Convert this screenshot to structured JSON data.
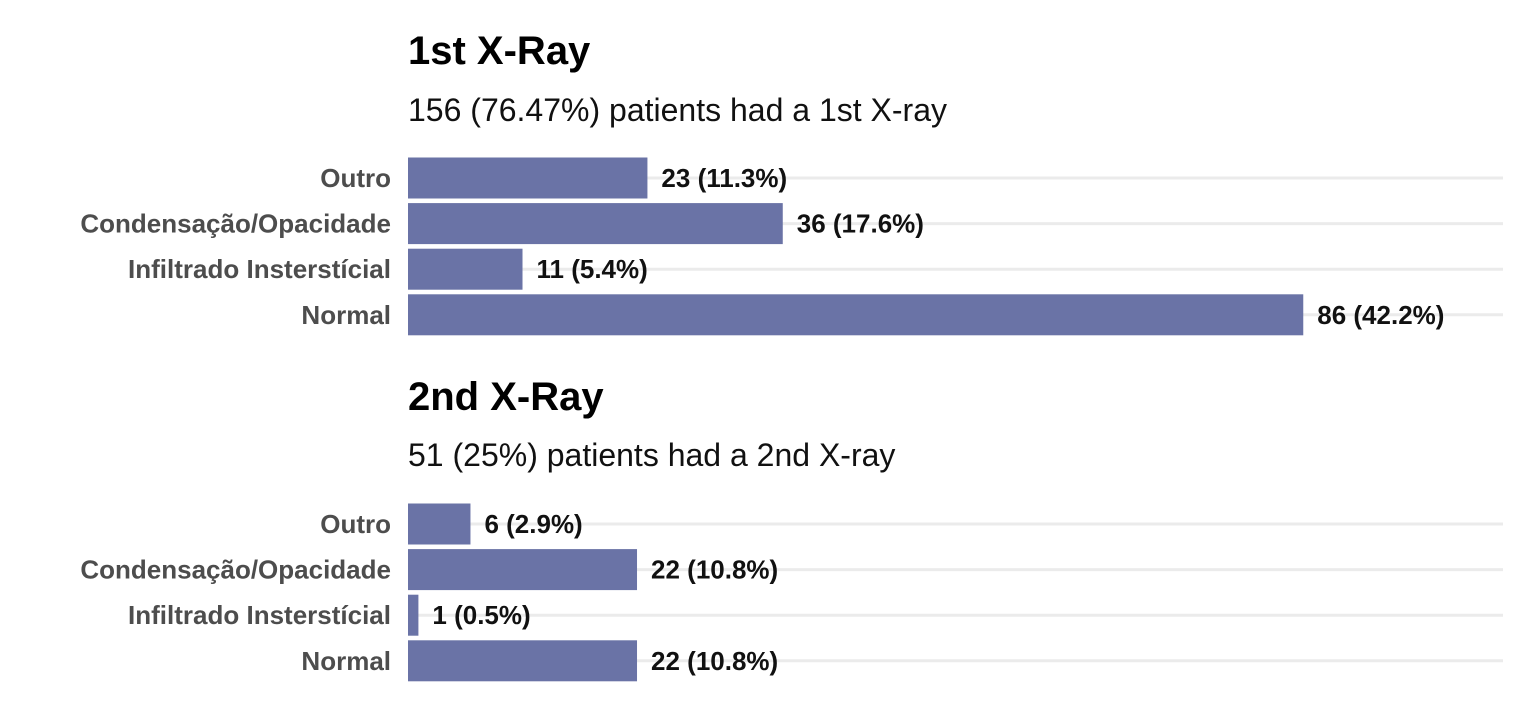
{
  "colors": {
    "bar": "#6a73a6",
    "grid": "#ebebeb"
  },
  "chart_data": [
    {
      "type": "bar",
      "orientation": "horizontal",
      "title": "1st X-Ray",
      "subtitle": "156 (76.47%) patients had a 1st X-ray",
      "categories": [
        "Outro",
        "Condensação/Opacidade",
        "Infiltrado Insterstícial",
        "Normal"
      ],
      "values": [
        23,
        36,
        11,
        86
      ],
      "labels": [
        "23 (11.3%)",
        "36 (17.6%)",
        "11 (5.4%)",
        "86 (42.2%)"
      ],
      "grid": true
    },
    {
      "type": "bar",
      "orientation": "horizontal",
      "title": "2nd X-Ray",
      "subtitle": "51 (25%) patients had a 2nd X-ray",
      "categories": [
        "Outro",
        "Condensação/Opacidade",
        "Infiltrado Insterstícial",
        "Normal"
      ],
      "values": [
        6,
        22,
        1,
        22
      ],
      "labels": [
        "6 (2.9%)",
        "22 (10.8%)",
        "1 (0.5%)",
        "22 (10.8%)"
      ],
      "grid": true
    }
  ]
}
